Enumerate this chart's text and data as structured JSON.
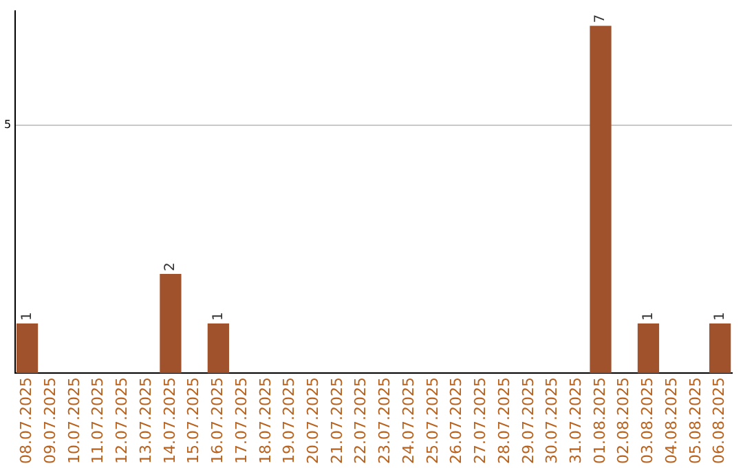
{
  "chart_data": {
    "type": "bar",
    "categories": [
      "08.07.2025",
      "09.07.2025",
      "10.07.2025",
      "11.07.2025",
      "12.07.2025",
      "13.07.2025",
      "14.07.2025",
      "15.07.2025",
      "16.07.2025",
      "17.07.2025",
      "18.07.2025",
      "19.07.2025",
      "20.07.2025",
      "21.07.2025",
      "22.07.2025",
      "23.07.2025",
      "24.07.2025",
      "25.07.2025",
      "26.07.2025",
      "27.07.2025",
      "28.07.2025",
      "29.07.2025",
      "30.07.2025",
      "31.07.2025",
      "01.08.2025",
      "02.08.2025",
      "03.08.2025",
      "04.08.2025",
      "05.08.2025",
      "06.08.2025"
    ],
    "values": [
      1,
      0,
      0,
      0,
      0,
      0,
      2,
      0,
      1,
      0,
      0,
      0,
      0,
      0,
      0,
      0,
      0,
      0,
      0,
      0,
      0,
      0,
      0,
      0,
      7,
      0,
      1,
      0,
      0,
      1
    ],
    "value_labels": [
      "1",
      null,
      null,
      null,
      null,
      null,
      "2",
      null,
      "1",
      null,
      null,
      null,
      null,
      null,
      null,
      null,
      null,
      null,
      null,
      null,
      null,
      null,
      null,
      null,
      "7",
      null,
      "1",
      null,
      null,
      "1"
    ],
    "color": "#a0522d",
    "ylim": [
      0,
      7.3
    ],
    "yticks": [
      5
    ],
    "grid": "y",
    "legend": false
  }
}
